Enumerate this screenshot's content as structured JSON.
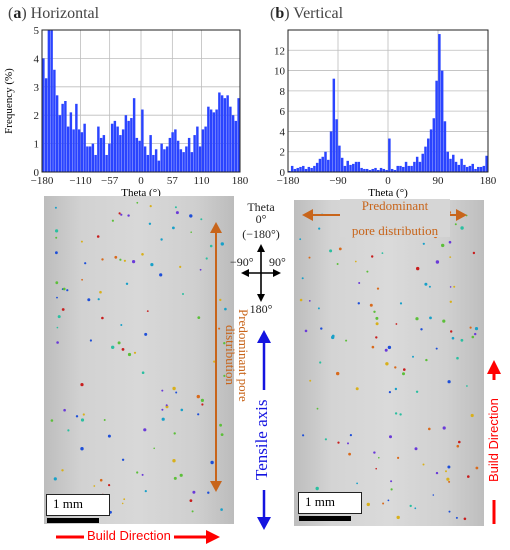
{
  "chart_data": [
    {
      "type": "bar",
      "panel_letter": "a",
      "title": "Horizontal",
      "xlabel": "Theta (°)",
      "ylabel": "Frequency (%)",
      "xlim": [
        -180,
        180
      ],
      "ylim": [
        0,
        5
      ],
      "xticks": [
        "-180",
        "-110",
        "-57",
        "0",
        "57",
        "110",
        "180"
      ],
      "yticks": [
        "0",
        "1",
        "2",
        "3",
        "4",
        "5"
      ],
      "grid": true,
      "bin_width": 5,
      "values": [
        4.0,
        3.3,
        5.0,
        5.0,
        3.6,
        2.7,
        2.0,
        2.4,
        2.5,
        1.6,
        2.1,
        1.5,
        2.4,
        1.5,
        1.4,
        1.7,
        0.9,
        0.9,
        1.0,
        0.6,
        1.6,
        1.2,
        1.3,
        0.6,
        1.0,
        1.7,
        1.8,
        1.6,
        1.3,
        1.5,
        2.0,
        1.8,
        1.9,
        2.6,
        1.2,
        1.1,
        2.2,
        0.9,
        0.6,
        1.3,
        0.6,
        0.8,
        0.4,
        1.0,
        0.8,
        0.9,
        1.2,
        1.4,
        1.5,
        1.1,
        0.8,
        0.7,
        0.9,
        1.2,
        0.7,
        1.3,
        1.6,
        0.9,
        1.5,
        1.6,
        2.3,
        2.2,
        2.1,
        2.2,
        2.8,
        2.7,
        2.6,
        2.7,
        2.3,
        2.0,
        1.8,
        2.6
      ]
    },
    {
      "type": "bar",
      "panel_letter": "b",
      "title": "Vertical",
      "xlabel": "Theta (°)",
      "ylabel": "",
      "xlim": [
        -180,
        180
      ],
      "ylim": [
        0,
        14
      ],
      "xticks": [
        "-180",
        "-90",
        "0",
        "90",
        "180"
      ],
      "yticks": [
        "0",
        "2",
        "4",
        "6",
        "8",
        "10",
        "12"
      ],
      "grid": true,
      "bin_width": 5,
      "values": [
        0.1,
        0.6,
        0.3,
        0.4,
        0.5,
        0.6,
        0.3,
        0.5,
        0.4,
        0.6,
        0.9,
        1.3,
        1.5,
        2.0,
        1.2,
        4.0,
        9.2,
        5.2,
        2.6,
        1.4,
        0.6,
        1.1,
        0.7,
        0.8,
        1.0,
        1.0,
        0.4,
        0.3,
        0.3,
        0.2,
        0.3,
        0.4,
        0.2,
        0.4,
        0.3,
        0.2,
        3.3,
        0.3,
        0.2,
        0.6,
        0.6,
        0.5,
        1.0,
        0.6,
        0.6,
        1.0,
        1.5,
        1.0,
        1.8,
        2.5,
        3.3,
        4.2,
        5.3,
        9.0,
        13.6,
        10.0,
        5.0,
        2.0,
        1.3,
        1.7,
        1.0,
        0.7,
        1.3,
        0.7,
        0.5,
        0.6,
        0.8,
        0.3,
        0.5,
        0.5,
        0.6,
        1.6
      ]
    }
  ],
  "orientation_key": {
    "title": "Theta",
    "top": "0°",
    "top_alt": "(−180°)",
    "left": "−90°",
    "right": "90°",
    "bottom": "180°"
  },
  "annotations": {
    "left_predominant": "Predominant pore distribution",
    "right_predominant_line1": "Predominant",
    "right_predominant_line2": "pore distribution",
    "tensile_axis": "Tensile axis",
    "build_direction_bottom": "Build Direction",
    "build_direction_right": "Build Direction",
    "scale_left": "1 mm",
    "scale_right": "1 mm"
  },
  "colors": {
    "bar_fill": "#2a44ff",
    "orange_arrow": "#c8651b",
    "blue_arrow": "#1414e0",
    "red_arrow": "#ff0000"
  }
}
